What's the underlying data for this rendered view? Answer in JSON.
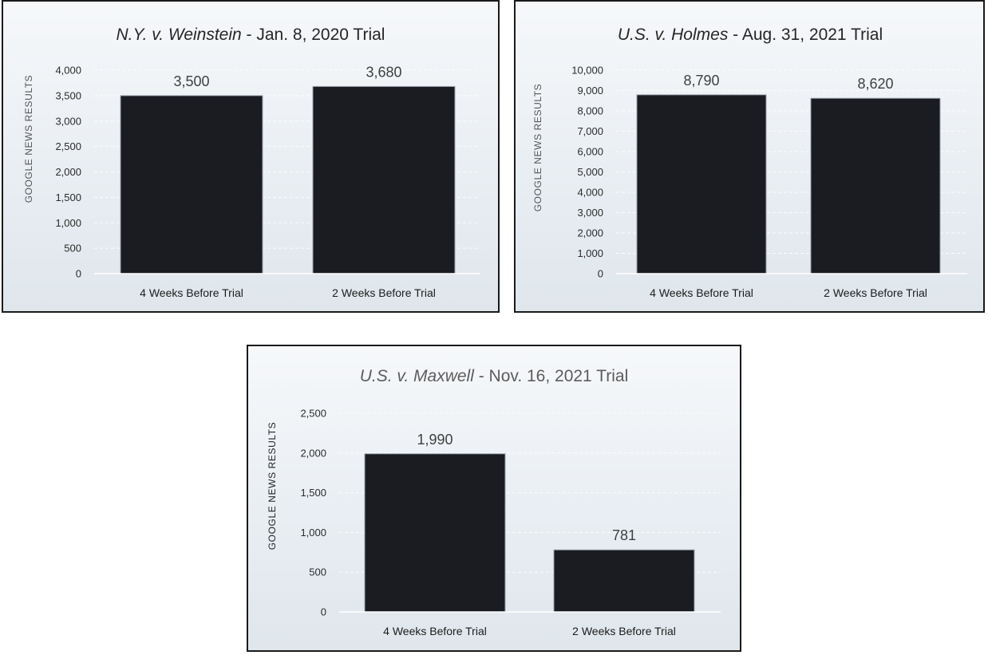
{
  "chart_data": [
    {
      "type": "bar",
      "title_italic": "N.Y. v. Weinstein",
      "title_rest": " - Jan. 8, 2020 Trial",
      "ylabel": "GOOGLE NEWS RESULTS",
      "ylim": [
        0,
        4000
      ],
      "yticks": [
        0,
        500,
        1000,
        1500,
        2000,
        2500,
        3000,
        3500,
        4000
      ],
      "categories": [
        "4 Weeks Before Trial",
        "2 Weeks Before Trial"
      ],
      "values": [
        3500,
        3680
      ],
      "value_labels": [
        "3,500",
        "3,680"
      ],
      "grid": true
    },
    {
      "type": "bar",
      "title_italic": "U.S. v. Holmes",
      "title_rest": " - Aug. 31, 2021 Trial",
      "ylabel": "GOOGLE NEWS RESULTS",
      "ylim": [
        0,
        10000
      ],
      "yticks": [
        0,
        1000,
        2000,
        3000,
        4000,
        5000,
        6000,
        7000,
        8000,
        9000,
        10000
      ],
      "categories": [
        "4 Weeks Before Trial",
        "2 Weeks Before Trial"
      ],
      "values": [
        8790,
        8620
      ],
      "value_labels": [
        "8,790",
        "8,620"
      ],
      "grid": true
    },
    {
      "type": "bar",
      "title_italic": "U.S. v. Maxwell",
      "title_rest": " - Nov. 16, 2021 Trial",
      "ylabel": "GOOGLE NEWS RESULTS",
      "ylim": [
        0,
        2500
      ],
      "yticks": [
        0,
        500,
        1000,
        1500,
        2000,
        2500
      ],
      "categories": [
        "4 Weeks Before Trial",
        "2 Weeks Before Trial"
      ],
      "values": [
        1990,
        781
      ],
      "value_labels": [
        "1,990",
        "781"
      ],
      "grid": true
    }
  ]
}
